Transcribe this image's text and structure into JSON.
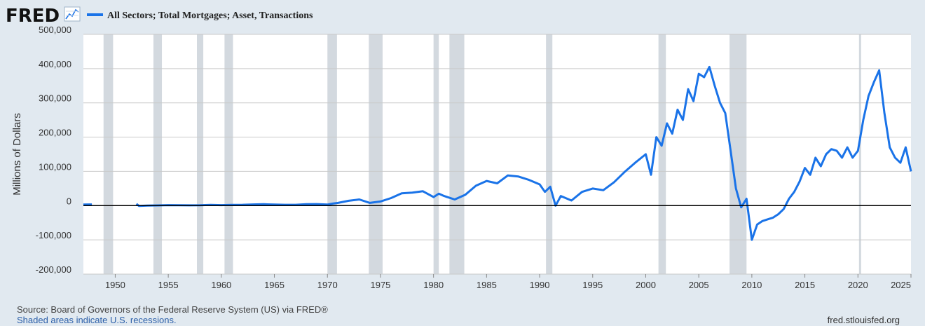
{
  "header": {
    "logo_text": "FRED",
    "logo_icon": "line-chart-icon",
    "legend_color": "#1a73e8"
  },
  "chart_data": {
    "type": "line",
    "title": "",
    "series_name": "All Sectors; Total Mortgages; Asset, Transactions",
    "ylabel": "Millions of Dollars",
    "xlabel": "",
    "xlim": [
      1947,
      2025
    ],
    "ylim": [
      -200000,
      500000
    ],
    "yticks": [
      -200000,
      -100000,
      0,
      100000,
      200000,
      300000,
      400000,
      500000
    ],
    "ytick_labels": [
      "-200,000",
      "-100,000",
      "0",
      "100,000",
      "200,000",
      "300,000",
      "400,000",
      "500,000"
    ],
    "xticks": [
      1950,
      1955,
      1960,
      1965,
      1970,
      1975,
      1980,
      1985,
      1990,
      1995,
      2000,
      2005,
      2010,
      2015,
      2020,
      2025
    ],
    "grid": true,
    "line_color": "#1a73e8",
    "recession_color": "#d3d9df",
    "recessions": [
      [
        1948.9,
        1949.8
      ],
      [
        1953.6,
        1954.4
      ],
      [
        1957.7,
        1958.3
      ],
      [
        1960.3,
        1961.1
      ],
      [
        1970.0,
        1970.9
      ],
      [
        1973.9,
        1975.2
      ],
      [
        1980.0,
        1980.5
      ],
      [
        1981.5,
        1982.9
      ],
      [
        1990.6,
        1991.2
      ],
      [
        2001.2,
        2001.9
      ],
      [
        2007.9,
        2009.5
      ],
      [
        2020.1,
        2020.3
      ]
    ],
    "segments": [
      {
        "x": [
          1947.0,
          1947.8
        ],
        "y": [
          3000,
          3500
        ]
      },
      {
        "x": [
          1952.0,
          1952.25,
          1953.0,
          1954.0,
          1955.0,
          1956.0,
          1957.0,
          1958.0,
          1959.0,
          1960.0,
          1961.0,
          1962.0,
          1963.0,
          1964.0,
          1965.0,
          1966.0,
          1967.0,
          1968.0,
          1969.0,
          1970.0,
          1970.5,
          1971.0,
          1972.0,
          1973.0,
          1974.0,
          1975.0,
          1976.0,
          1977.0,
          1978.0,
          1979.0,
          1980.0,
          1980.5,
          1981.0,
          1982.0,
          1983.0,
          1984.0,
          1985.0,
          1986.0,
          1987.0,
          1988.0,
          1989.0,
          1990.0,
          1990.5,
          1991.0,
          1991.5,
          1992.0,
          1993.0,
          1994.0,
          1995.0,
          1996.0,
          1997.0,
          1998.0,
          1999.0,
          2000.0,
          2000.5,
          2001.0,
          2001.5,
          2002.0,
          2002.5,
          2003.0,
          2003.5,
          2004.0,
          2004.5,
          2005.0,
          2005.5,
          2006.0,
          2006.5,
          2007.0,
          2007.5,
          2008.0,
          2008.5,
          2009.0,
          2009.5,
          2010.0,
          2010.5,
          2011.0,
          2011.5,
          2012.0,
          2012.5,
          2013.0,
          2013.5,
          2014.0,
          2014.5,
          2015.0,
          2015.5,
          2016.0,
          2016.5,
          2017.0,
          2017.5,
          2018.0,
          2018.5,
          2019.0,
          2019.5,
          2020.0,
          2020.5,
          2021.0,
          2021.5,
          2022.0,
          2022.5,
          2023.0,
          2023.5,
          2024.0,
          2024.5,
          2025.0
        ],
        "y": [
          5000,
          -1000,
          0,
          500,
          1500,
          1200,
          800,
          1000,
          2000,
          1500,
          2200,
          2500,
          3500,
          4000,
          3000,
          2500,
          2500,
          4000,
          4500,
          3000,
          6000,
          8000,
          14000,
          18000,
          8000,
          12000,
          22000,
          36000,
          38000,
          42000,
          25000,
          35000,
          28000,
          18000,
          32000,
          58000,
          72000,
          65000,
          88000,
          85000,
          75000,
          62000,
          40000,
          55000,
          0,
          28000,
          15000,
          40000,
          50000,
          45000,
          68000,
          98000,
          125000,
          150000,
          90000,
          200000,
          175000,
          240000,
          210000,
          280000,
          250000,
          340000,
          305000,
          385000,
          375000,
          405000,
          350000,
          300000,
          270000,
          160000,
          50000,
          -5000,
          20000,
          -100000,
          -55000,
          -45000,
          -40000,
          -35000,
          -25000,
          -10000,
          20000,
          40000,
          70000,
          110000,
          90000,
          140000,
          115000,
          150000,
          165000,
          160000,
          140000,
          170000,
          140000,
          160000,
          250000,
          320000,
          360000,
          395000,
          270000,
          170000,
          140000,
          125000,
          170000,
          100000
        ]
      }
    ]
  },
  "footer": {
    "source": "Source: Board of Governors of the Federal Reserve System (US) via FRED®",
    "note": "Shaded areas indicate U.S. recessions.",
    "url": "fred.stlouisfed.org"
  }
}
